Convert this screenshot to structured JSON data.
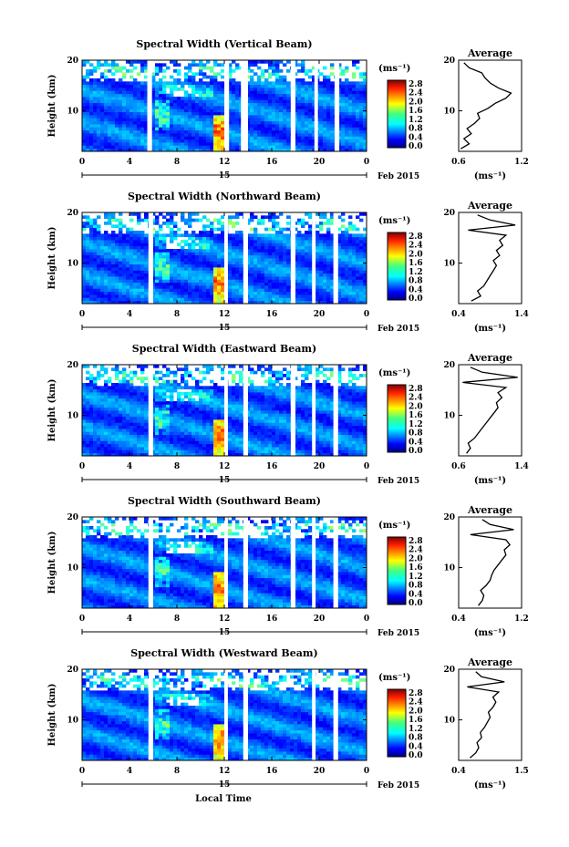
{
  "figure": {
    "xlabel": "Local Time",
    "date_label": "Feb 2015",
    "day_label": "15",
    "ylabel": "Height (km)",
    "colorbar_unit": "(ms⁻¹)",
    "average_title": "Average",
    "average_xlabel": "(ms⁻¹)"
  },
  "chart_data": [
    {
      "type": "heatmap",
      "title": "Spectral Width (Vertical Beam)",
      "xlim": [
        0,
        24
      ],
      "x_ticks": [
        "0",
        "4",
        "8",
        "12",
        "16",
        "20",
        "0"
      ],
      "ylim": [
        2,
        20
      ],
      "y_ticks": [
        "10",
        "20"
      ],
      "colorbar_ticks": [
        "2.8",
        "2.4",
        "2.0",
        "1.6",
        "1.2",
        "0.8",
        "0.4",
        "0.0"
      ],
      "data_gaps_hours": [
        [
          5.5,
          5.9
        ],
        [
          12.0,
          12.4
        ],
        [
          13.4,
          14.0
        ],
        [
          17.6,
          18.0
        ],
        [
          19.6,
          19.9
        ],
        [
          21.3,
          21.7
        ]
      ],
      "average_profile": {
        "type": "line",
        "xlim": [
          0.6,
          1.2
        ],
        "x_ticks": [
          "0.6",
          "1.2"
        ],
        "y_ticks": [
          "10",
          "20"
        ],
        "height_km": [
          2.5,
          3.5,
          4.5,
          5.5,
          6.5,
          7.5,
          8.5,
          9.5,
          10.5,
          11.5,
          12.5,
          13.5,
          14.5,
          15.5,
          16.5,
          17.5,
          18.5,
          19.5
        ],
        "width": [
          0.62,
          0.7,
          0.65,
          0.72,
          0.68,
          0.75,
          0.8,
          0.78,
          0.88,
          0.95,
          1.05,
          1.1,
          0.98,
          0.9,
          0.85,
          0.82,
          0.7,
          0.65
        ]
      }
    },
    {
      "type": "heatmap",
      "title": "Spectral Width (Northward Beam)",
      "xlim": [
        0,
        24
      ],
      "x_ticks": [
        "0",
        "4",
        "8",
        "12",
        "16",
        "20",
        "0"
      ],
      "ylim": [
        2,
        20
      ],
      "y_ticks": [
        "10",
        "20"
      ],
      "colorbar_ticks": [
        "2.8",
        "2.4",
        "2.0",
        "1.6",
        "1.2",
        "0.8",
        "0.4",
        "0.0"
      ],
      "data_gaps_hours": [
        [
          5.6,
          6.0
        ],
        [
          12.0,
          12.3
        ],
        [
          13.6,
          14.0
        ],
        [
          17.6,
          18.0
        ],
        [
          19.4,
          19.7
        ],
        [
          21.2,
          21.6
        ]
      ],
      "average_profile": {
        "type": "line",
        "xlim": [
          0.4,
          1.4
        ],
        "x_ticks": [
          "0.4",
          "1.4"
        ],
        "y_ticks": [
          "10",
          "20"
        ],
        "height_km": [
          2.5,
          3.5,
          4.5,
          5.5,
          6.5,
          7.5,
          8.5,
          9.5,
          10.5,
          11.5,
          12.5,
          13.5,
          14.5,
          15.5,
          16.5,
          17.5,
          18.5,
          19.5
        ],
        "width": [
          0.6,
          0.75,
          0.7,
          0.8,
          0.85,
          0.9,
          0.95,
          1.0,
          0.95,
          1.05,
          1.0,
          1.1,
          1.05,
          1.15,
          0.55,
          1.3,
          0.9,
          0.7
        ]
      }
    },
    {
      "type": "heatmap",
      "title": "Spectral Width (Eastward Beam)",
      "xlim": [
        0,
        24
      ],
      "x_ticks": [
        "0",
        "4",
        "8",
        "12",
        "16",
        "20",
        "0"
      ],
      "ylim": [
        2,
        20
      ],
      "y_ticks": [
        "10",
        "20"
      ],
      "colorbar_ticks": [
        "2.8",
        "2.4",
        "2.0",
        "1.6",
        "1.2",
        "0.8",
        "0.4",
        "0.0"
      ],
      "data_gaps_hours": [
        [
          5.6,
          6.0
        ],
        [
          12.0,
          12.3
        ],
        [
          13.6,
          14.0
        ],
        [
          17.6,
          18.0
        ],
        [
          19.4,
          19.7
        ],
        [
          21.2,
          21.6
        ]
      ],
      "average_profile": {
        "type": "line",
        "xlim": [
          0.6,
          1.4
        ],
        "x_ticks": [
          "0.6",
          "1.4"
        ],
        "y_ticks": [
          "10",
          "20"
        ],
        "height_km": [
          2.5,
          3.5,
          4.5,
          5.5,
          6.5,
          7.5,
          8.5,
          9.5,
          10.5,
          11.5,
          12.5,
          13.5,
          14.5,
          15.5,
          16.5,
          17.5,
          18.5,
          19.5
        ],
        "width": [
          0.7,
          0.75,
          0.72,
          0.8,
          0.85,
          0.9,
          0.95,
          1.0,
          1.05,
          1.1,
          1.08,
          1.15,
          1.1,
          1.2,
          0.65,
          1.35,
          0.9,
          0.75
        ]
      }
    },
    {
      "type": "heatmap",
      "title": "Spectral Width (Southward Beam)",
      "xlim": [
        0,
        24
      ],
      "x_ticks": [
        "0",
        "4",
        "8",
        "12",
        "16",
        "20",
        "0"
      ],
      "ylim": [
        2,
        20
      ],
      "y_ticks": [
        "10",
        "20"
      ],
      "colorbar_ticks": [
        "2.8",
        "2.4",
        "2.0",
        "1.6",
        "1.2",
        "0.8",
        "0.4",
        "0.0"
      ],
      "data_gaps_hours": [
        [
          5.6,
          6.0
        ],
        [
          12.0,
          12.3
        ],
        [
          13.6,
          14.0
        ],
        [
          17.6,
          18.0
        ],
        [
          19.4,
          19.7
        ],
        [
          21.2,
          21.6
        ]
      ],
      "average_profile": {
        "type": "line",
        "xlim": [
          0.4,
          1.2
        ],
        "x_ticks": [
          "0.4",
          "1.2"
        ],
        "y_ticks": [
          "10",
          "20"
        ],
        "height_km": [
          2.5,
          3.5,
          4.5,
          5.5,
          6.5,
          7.5,
          8.5,
          9.5,
          10.5,
          11.5,
          12.5,
          13.5,
          14.5,
          15.5,
          16.5,
          17.5,
          18.5,
          19.5
        ],
        "width": [
          0.65,
          0.7,
          0.72,
          0.68,
          0.75,
          0.8,
          0.82,
          0.85,
          0.9,
          0.95,
          1.0,
          0.98,
          1.05,
          1.0,
          0.55,
          1.1,
          0.8,
          0.7
        ]
      }
    },
    {
      "type": "heatmap",
      "title": "Spectral Width (Westward Beam)",
      "xlim": [
        0,
        24
      ],
      "x_ticks": [
        "0",
        "4",
        "8",
        "12",
        "16",
        "20",
        "0"
      ],
      "ylim": [
        2,
        20
      ],
      "y_ticks": [
        "10",
        "20"
      ],
      "colorbar_ticks": [
        "2.8",
        "2.4",
        "2.0",
        "1.6",
        "1.2",
        "0.8",
        "0.4",
        "0.0"
      ],
      "data_gaps_hours": [
        [
          5.6,
          6.0
        ],
        [
          12.0,
          12.3
        ],
        [
          13.6,
          14.0
        ],
        [
          19.4,
          19.7
        ],
        [
          21.2,
          21.6
        ]
      ],
      "average_profile": {
        "type": "line",
        "xlim": [
          0.4,
          1.5
        ],
        "x_ticks": [
          "0.4",
          "1.5"
        ],
        "y_ticks": [
          "10",
          "20"
        ],
        "height_km": [
          2.5,
          3.5,
          4.5,
          5.5,
          6.5,
          7.5,
          8.5,
          9.5,
          10.5,
          11.5,
          12.5,
          13.5,
          14.5,
          15.5,
          16.5,
          17.5,
          18.5,
          19.5
        ],
        "width": [
          0.6,
          0.7,
          0.75,
          0.72,
          0.8,
          0.78,
          0.85,
          0.9,
          0.95,
          0.92,
          1.0,
          1.05,
          1.0,
          1.1,
          0.55,
          1.2,
          0.8,
          0.7
        ]
      }
    }
  ]
}
